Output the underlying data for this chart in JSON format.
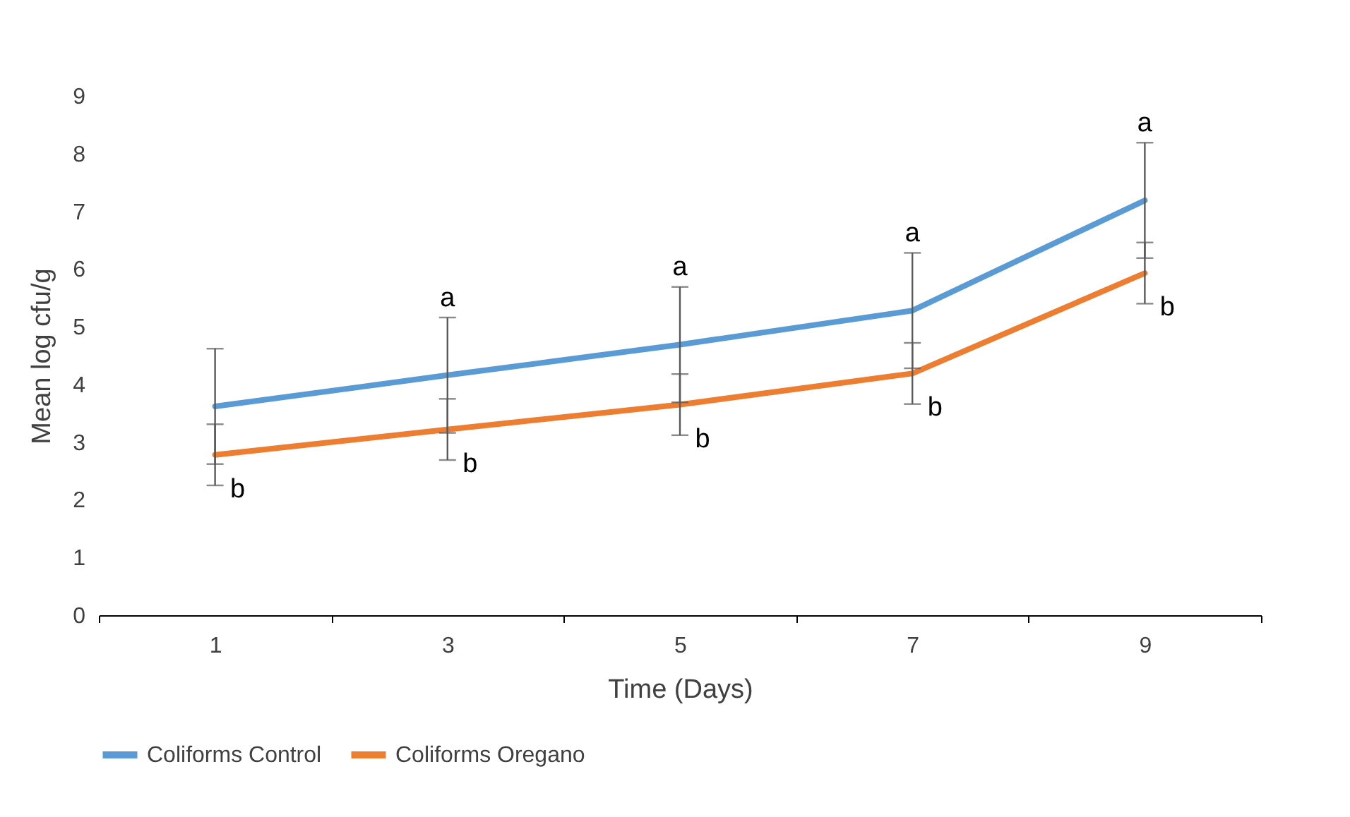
{
  "chart_data": {
    "type": "line",
    "xlabel": "Time (Days)",
    "ylabel": "Mean log cfu/g",
    "categories": [
      "1",
      "3",
      "5",
      "7",
      "9"
    ],
    "series": [
      {
        "name": "Coliforms Control",
        "color": "#5b9bd5",
        "values": [
          3.62,
          4.16,
          4.69,
          5.28,
          7.19
        ],
        "errors": [
          1,
          1,
          1,
          1,
          1
        ]
      },
      {
        "name": "Coliforms Oregano",
        "color": "#ed7d31",
        "values": [
          2.78,
          3.22,
          3.65,
          4.19,
          5.93
        ],
        "errors": [
          0.53,
          0.53,
          0.53,
          0.53,
          0.53
        ]
      }
    ],
    "ylim": [
      0,
      9
    ],
    "yticks": [
      0,
      1,
      2,
      3,
      4,
      5,
      6,
      7,
      8,
      9
    ],
    "grid": false,
    "legend": "bottom",
    "marker": "none",
    "line_style": "solid",
    "annotations": [
      {
        "text": "a",
        "x": "3",
        "y": 4.16
      },
      {
        "text": "a",
        "x": "5",
        "y": 4.69
      },
      {
        "text": "a",
        "x": "7",
        "y": 5.28
      },
      {
        "text": "a",
        "x": "9",
        "y": 7.19
      },
      {
        "text": "b",
        "x": "1",
        "y": 2.78
      },
      {
        "text": "b",
        "x": "3",
        "y": 3.22
      },
      {
        "text": "b",
        "x": "5",
        "y": 3.65
      },
      {
        "text": "b",
        "x": "7",
        "y": 4.19
      },
      {
        "text": "b",
        "x": "9",
        "y": 5.93
      }
    ]
  }
}
